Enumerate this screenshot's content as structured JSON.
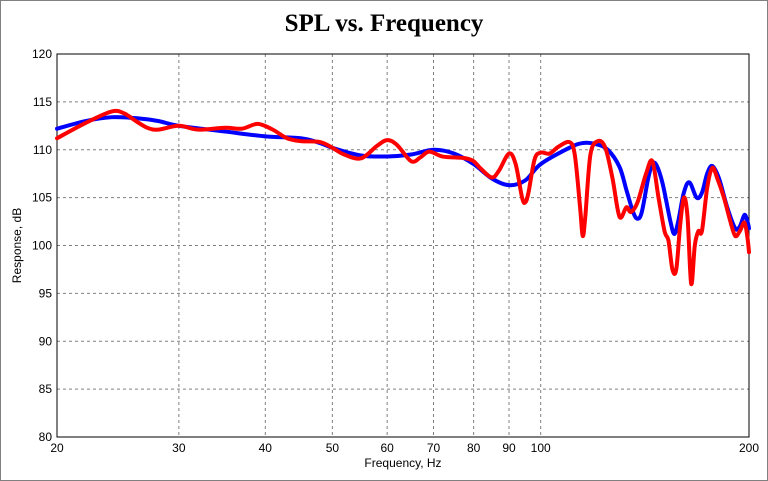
{
  "chart_data": {
    "type": "line",
    "title": "SPL vs. Frequency",
    "xlabel": "Frequency, Hz",
    "ylabel": "Response, dB",
    "xscale": "log",
    "xlim": [
      20,
      200
    ],
    "ylim": [
      80,
      120
    ],
    "x_ticks": [
      20,
      30,
      40,
      50,
      60,
      70,
      80,
      90,
      100,
      200
    ],
    "y_ticks": [
      80,
      85,
      90,
      95,
      100,
      105,
      110,
      115,
      120
    ],
    "grid": true,
    "colors": {
      "series_1": "#0000ff",
      "series_2": "#ff0000",
      "grid": "#808080"
    },
    "series": [
      {
        "points": [
          [
            20,
            112.2
          ],
          [
            22,
            113
          ],
          [
            24,
            113.4
          ],
          [
            26,
            113.3
          ],
          [
            28,
            113
          ],
          [
            30,
            112.5
          ],
          [
            35,
            111.9
          ],
          [
            40,
            111.4
          ],
          [
            45,
            111.2
          ],
          [
            48,
            110.7
          ],
          [
            50,
            110.2
          ],
          [
            55,
            109.4
          ],
          [
            60,
            109.3
          ],
          [
            65,
            109.5
          ],
          [
            70,
            110
          ],
          [
            75,
            109.6
          ],
          [
            80,
            108.5
          ],
          [
            85,
            107
          ],
          [
            90,
            106.3
          ],
          [
            95,
            106.8
          ],
          [
            100,
            108.5
          ],
          [
            110,
            110.2
          ],
          [
            115,
            110.7
          ],
          [
            120,
            110.6
          ],
          [
            125,
            110
          ],
          [
            130,
            108.2
          ],
          [
            133,
            105.8
          ],
          [
            136,
            103.5
          ],
          [
            138,
            102.8
          ],
          [
            140,
            103.5
          ],
          [
            143,
            107
          ],
          [
            145,
            108.5
          ],
          [
            147,
            108.4
          ],
          [
            150,
            106.5
          ],
          [
            154,
            102.5
          ],
          [
            156,
            101.2
          ],
          [
            158,
            102.5
          ],
          [
            161,
            105.5
          ],
          [
            164,
            106.6
          ],
          [
            168,
            105
          ],
          [
            171,
            105.5
          ],
          [
            174,
            107.5
          ],
          [
            177,
            108.3
          ],
          [
            181,
            107
          ],
          [
            186,
            104
          ],
          [
            191,
            101.8
          ],
          [
            194,
            102
          ],
          [
            197,
            103.2
          ],
          [
            199,
            102.5
          ],
          [
            200,
            101.8
          ]
        ]
      },
      {
        "points": [
          [
            20,
            111.2
          ],
          [
            22,
            112.8
          ],
          [
            24,
            114
          ],
          [
            25,
            113.8
          ],
          [
            26,
            113
          ],
          [
            27,
            112.3
          ],
          [
            28,
            112.1
          ],
          [
            30,
            112.5
          ],
          [
            32,
            112.1
          ],
          [
            35,
            112.3
          ],
          [
            37,
            112.2
          ],
          [
            39,
            112.7
          ],
          [
            41,
            112.1
          ],
          [
            43,
            111.2
          ],
          [
            45,
            110.9
          ],
          [
            48,
            110.8
          ],
          [
            50,
            110.2
          ],
          [
            52,
            109.5
          ],
          [
            55,
            109.1
          ],
          [
            58,
            110.4
          ],
          [
            60,
            111
          ],
          [
            62,
            110.5
          ],
          [
            65,
            108.8
          ],
          [
            67,
            109.2
          ],
          [
            69,
            109.8
          ],
          [
            72,
            109.3
          ],
          [
            75,
            109.2
          ],
          [
            78,
            109.1
          ],
          [
            80,
            108.8
          ],
          [
            82,
            108
          ],
          [
            85,
            107.1
          ],
          [
            87,
            107.8
          ],
          [
            90,
            109.6
          ],
          [
            92,
            108.5
          ],
          [
            94,
            105
          ],
          [
            95,
            104.5
          ],
          [
            96,
            105.5
          ],
          [
            98,
            109
          ],
          [
            100,
            109.7
          ],
          [
            103,
            109.6
          ],
          [
            106,
            110.3
          ],
          [
            110,
            110.8
          ],
          [
            112,
            109.5
          ],
          [
            114,
            104
          ],
          [
            115,
            101
          ],
          [
            116,
            103
          ],
          [
            118,
            109.5
          ],
          [
            121,
            110.9
          ],
          [
            124,
            110.2
          ],
          [
            127,
            107
          ],
          [
            130,
            103
          ],
          [
            133,
            104
          ],
          [
            135,
            103.5
          ],
          [
            138,
            104.5
          ],
          [
            142,
            107.5
          ],
          [
            145,
            108.8
          ],
          [
            148,
            105
          ],
          [
            151,
            101.5
          ],
          [
            153,
            100.5
          ],
          [
            155,
            97.5
          ],
          [
            157,
            97.5
          ],
          [
            159,
            102
          ],
          [
            161,
            105
          ],
          [
            163,
            103
          ],
          [
            165,
            96
          ],
          [
            167,
            100
          ],
          [
            169,
            101.5
          ],
          [
            171,
            101.5
          ],
          [
            174,
            106
          ],
          [
            177,
            108.1
          ],
          [
            180,
            107
          ],
          [
            184,
            105
          ],
          [
            188,
            102.5
          ],
          [
            191,
            101
          ],
          [
            194,
            101.5
          ],
          [
            197,
            102.4
          ],
          [
            199,
            100.8
          ],
          [
            200,
            99.3
          ]
        ]
      }
    ]
  }
}
